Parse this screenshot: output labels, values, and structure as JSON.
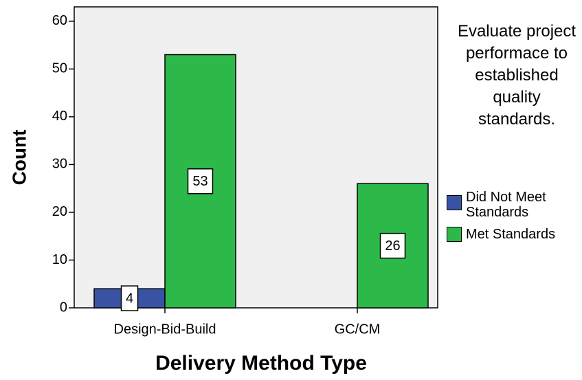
{
  "chart_data": {
    "type": "bar",
    "categories": [
      "Design-Bid-Build",
      "GC/CM"
    ],
    "series": [
      {
        "name": "Did Not Meet Standards",
        "color": "#3953a4",
        "values": [
          4,
          null
        ]
      },
      {
        "name": "Met Standards",
        "color": "#2db84a",
        "values": [
          53,
          26
        ]
      }
    ],
    "x_label": "Delivery Method Type",
    "y_label": "Count",
    "legend_title": "Evaluate project performace to established quality standards.",
    "ylim": [
      0,
      63
    ],
    "yticks": [
      0,
      10,
      20,
      30,
      40,
      50,
      60
    ],
    "grid": false,
    "legend": "right"
  }
}
